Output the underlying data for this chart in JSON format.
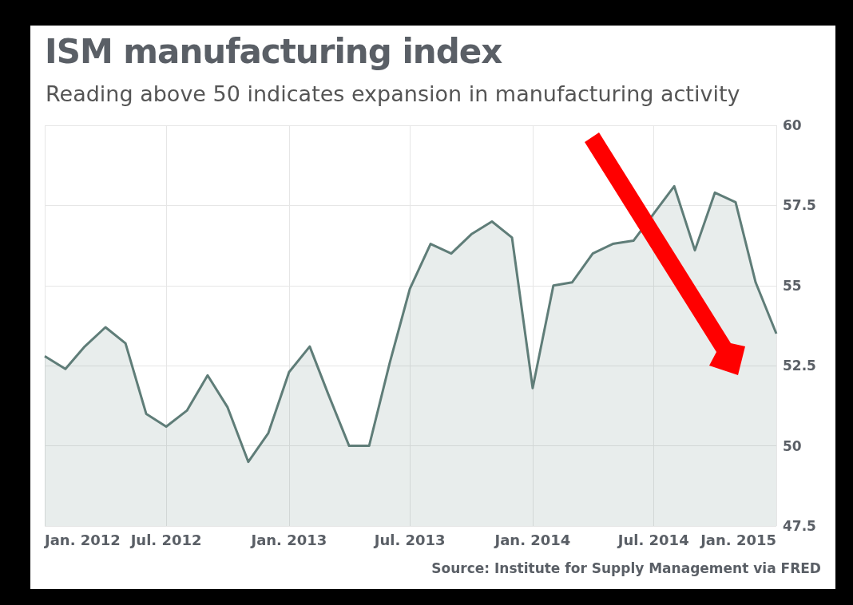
{
  "chart_data": {
    "type": "area",
    "title": "ISM manufacturing index",
    "subtitle": "Reading above 50 indicates expansion in manufacturing activity",
    "annotations": [
      "Source: Institute for Supply Management via FRED"
    ],
    "x": [
      "2012-01",
      "2012-02",
      "2012-03",
      "2012-04",
      "2012-05",
      "2012-06",
      "2012-07",
      "2012-08",
      "2012-09",
      "2012-10",
      "2012-11",
      "2012-12",
      "2013-01",
      "2013-02",
      "2013-03",
      "2013-04",
      "2013-05",
      "2013-06",
      "2013-07",
      "2013-08",
      "2013-09",
      "2013-10",
      "2013-11",
      "2013-12",
      "2014-01",
      "2014-02",
      "2014-03",
      "2014-04",
      "2014-05",
      "2014-06",
      "2014-07",
      "2014-08",
      "2014-09",
      "2014-10",
      "2014-11",
      "2014-12",
      "2015-01"
    ],
    "series": [
      {
        "color": "#5f7d78",
        "values": [
          52.8,
          52.4,
          53.1,
          53.7,
          53.2,
          51.0,
          50.6,
          51.1,
          52.2,
          51.2,
          49.5,
          50.4,
          52.3,
          53.1,
          51.6,
          50.0,
          50.0,
          52.6,
          54.9,
          56.3,
          56.0,
          56.6,
          57.0,
          56.5,
          51.8,
          55.0,
          55.1,
          56.0,
          56.3,
          56.4,
          null,
          58.1,
          56.1,
          57.9,
          57.6,
          55.1,
          53.5
        ]
      }
    ],
    "xlim": [
      "2012-01",
      "2015-01"
    ],
    "xticks": [
      {
        "value": "2012-01",
        "label": "Jan. 2012"
      },
      {
        "value": "2012-07",
        "label": "Jul. 2012"
      },
      {
        "value": "2013-01",
        "label": "Jan. 2013"
      },
      {
        "value": "2013-07",
        "label": "Jul. 2013"
      },
      {
        "value": "2014-01",
        "label": "Jan. 2014"
      },
      {
        "value": "2014-07",
        "label": "Jul. 2014"
      },
      {
        "value": "2015-01",
        "label": "Jan. 2015"
      }
    ],
    "ylim": [
      47.5,
      60
    ],
    "yticks": [
      47.5,
      50,
      52.5,
      55,
      57.5,
      60
    ],
    "grid": true,
    "marker": "none"
  }
}
